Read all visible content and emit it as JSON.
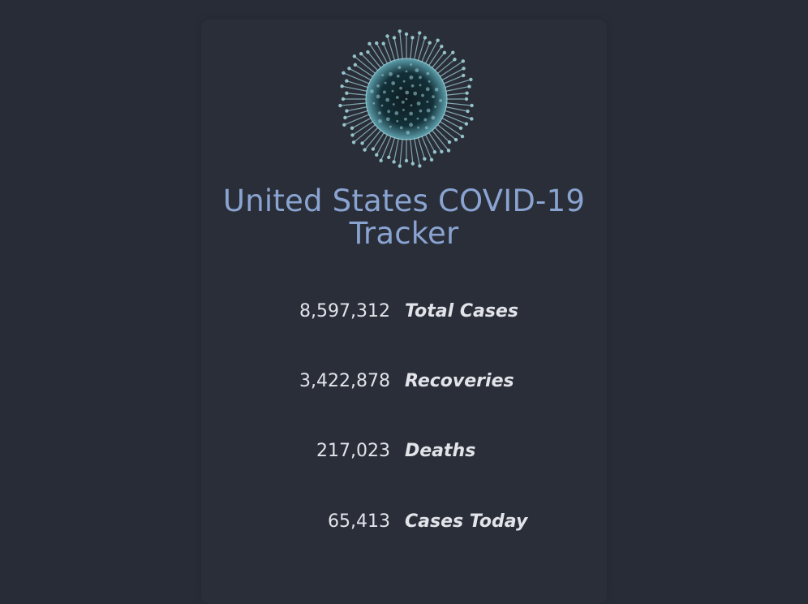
{
  "app": {
    "title": "United States COVID-19 Tracker"
  },
  "image": {
    "icon": "coronavirus-image",
    "colors": {
      "core": "#0e1c22",
      "spike": "#9fd0d8",
      "glow": "#5fa5b2"
    }
  },
  "colors": {
    "background": "#282c36",
    "card": "#2a2e38",
    "title": "#8aa4d2",
    "text": "#e2e4ea"
  },
  "stats": [
    {
      "value": "8,597,312",
      "label": "Total Cases"
    },
    {
      "value": "3,422,878",
      "label": "Recoveries"
    },
    {
      "value": "217,023",
      "label": "Deaths"
    },
    {
      "value": "65,413",
      "label": "Cases Today"
    }
  ]
}
